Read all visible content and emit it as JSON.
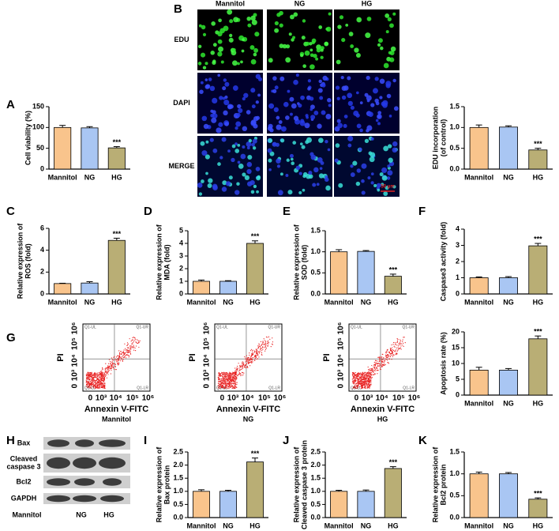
{
  "panel_labels": [
    "A",
    "B",
    "C",
    "D",
    "E",
    "F",
    "G",
    "H",
    "I",
    "J",
    "K"
  ],
  "microscopy": {
    "columns": [
      "Mannitol",
      "NG",
      "HG"
    ],
    "rows": [
      "EDU",
      "DAPI",
      "MERGE"
    ],
    "scale_bar": "50 μm"
  },
  "flow": {
    "samples": [
      "Mannitol",
      "NG",
      "HG"
    ],
    "quadrants": [
      "Q1-UL",
      "Q1-UR",
      "Q1-LL",
      "Q1-LR"
    ],
    "xlabel": "Annexin V-FITC",
    "ylabel": "PI",
    "ticks": [
      "0",
      "10³",
      "10⁴",
      "10⁵",
      "10⁶"
    ]
  },
  "blot": {
    "rows": [
      [
        "Bax"
      ],
      [
        "Cleaved",
        "caspase 3"
      ],
      [
        "Bcl2"
      ],
      [
        "GAPDH"
      ]
    ],
    "columns": [
      "Mannitol",
      "NG",
      "HG"
    ]
  },
  "chart_data": [
    {
      "type": "bar",
      "ylabel": [
        "Cell viability (%)"
      ],
      "categories": [
        "Mannitol",
        "NG",
        "HG"
      ],
      "colors": [
        "#f9c48c",
        "#a9c6f3",
        "#b9ae75"
      ],
      "values": [
        100,
        99,
        51
      ],
      "errors": [
        5,
        3,
        3
      ],
      "annotation": "***",
      "ylim": [
        0,
        150
      ],
      "yticks": [
        0,
        50,
        100,
        150
      ]
    },
    {
      "type": "bar",
      "ylabel": [
        "EDU incorporation",
        "(of control)"
      ],
      "categories": [
        "Mannitol",
        "NG",
        "HG"
      ],
      "colors": [
        "#f9c48c",
        "#a9c6f3",
        "#b9ae75"
      ],
      "values": [
        1.0,
        1.01,
        0.46
      ],
      "errors": [
        0.06,
        0.03,
        0.04
      ],
      "annotation": "***",
      "ylim": [
        0,
        1.5
      ],
      "yticks": [
        {
          "value": 0,
          "label": "0.0"
        },
        {
          "value": 0.5,
          "label": "0.5"
        },
        {
          "value": 1,
          "label": "1.0"
        },
        {
          "value": 1.5,
          "label": "1.5"
        }
      ]
    },
    {
      "type": "bar",
      "ylabel": [
        "Relative expression of",
        "ROS (fold)"
      ],
      "categories": [
        "Mannitol",
        "NG",
        "HG"
      ],
      "colors": [
        "#f9c48c",
        "#a9c6f3",
        "#b9ae75"
      ],
      "values": [
        0.95,
        1.0,
        4.9
      ],
      "errors": [
        0.03,
        0.12,
        0.2
      ],
      "annotation": "***",
      "ylim": [
        0,
        6
      ],
      "yticks": [
        0,
        2,
        4,
        6
      ]
    },
    {
      "type": "bar",
      "ylabel": [
        "Relative expression of",
        "MDA (fold)"
      ],
      "categories": [
        "Mannitol",
        "NG",
        "HG"
      ],
      "colors": [
        "#f9c48c",
        "#a9c6f3",
        "#b9ae75"
      ],
      "values": [
        1.0,
        1.0,
        4.0
      ],
      "errors": [
        0.1,
        0.05,
        0.2
      ],
      "annotation": "***",
      "ylim": [
        0,
        5
      ],
      "yticks": [
        0,
        1,
        2,
        3,
        4,
        5
      ]
    },
    {
      "type": "bar",
      "ylabel": [
        "Relative expression of",
        "SOD (fold)"
      ],
      "categories": [
        "Mannitol",
        "NG",
        "HG"
      ],
      "colors": [
        "#f9c48c",
        "#a9c6f3",
        "#b9ae75"
      ],
      "values": [
        1.0,
        1.01,
        0.42
      ],
      "errors": [
        0.05,
        0.02,
        0.05
      ],
      "annotation": "***",
      "ylim": [
        0,
        1.5
      ],
      "yticks": [
        {
          "value": 0,
          "label": "0.0"
        },
        {
          "value": 0.5,
          "label": "0.5"
        },
        {
          "value": 1,
          "label": "1.0"
        },
        {
          "value": 1.5,
          "label": "1.5"
        }
      ]
    },
    {
      "type": "bar",
      "ylabel": [
        "Caspase3 activity (fold)"
      ],
      "categories": [
        "Mannitol",
        "NG",
        "HG"
      ],
      "colors": [
        "#f9c48c",
        "#a9c6f3",
        "#b9ae75"
      ],
      "values": [
        1.0,
        1.0,
        2.97
      ],
      "errors": [
        0.05,
        0.07,
        0.15
      ],
      "annotation": "***",
      "ylim": [
        0,
        4
      ],
      "yticks": [
        0,
        1,
        2,
        3,
        4
      ]
    },
    {
      "type": "bar",
      "ylabel": [
        "Apoptosis rate (%)"
      ],
      "categories": [
        "Mannitol",
        "NG",
        "HG"
      ],
      "colors": [
        "#f9c48c",
        "#a9c6f3",
        "#b9ae75"
      ],
      "values": [
        7.9,
        7.9,
        17.8
      ],
      "errors": [
        0.9,
        0.5,
        0.9
      ],
      "annotation": "***",
      "ylim": [
        0,
        20
      ],
      "yticks": [
        0,
        5,
        10,
        15,
        20
      ]
    },
    {
      "type": "bar",
      "ylabel": [
        "Relative expression of",
        "Bax protein"
      ],
      "categories": [
        "Mannitol",
        "NG",
        "HG"
      ],
      "colors": [
        "#f9c48c",
        "#a9c6f3",
        "#b9ae75"
      ],
      "values": [
        1.0,
        1.0,
        2.12
      ],
      "errors": [
        0.06,
        0.04,
        0.15
      ],
      "annotation": "***",
      "ylim": [
        0,
        2.5
      ],
      "yticks": [
        {
          "value": 0,
          "label": "0.0"
        },
        {
          "value": 0.5,
          "label": "0.5"
        },
        {
          "value": 1,
          "label": "1.0"
        },
        {
          "value": 1.5,
          "label": "1.5"
        },
        {
          "value": 2,
          "label": "2.0"
        },
        {
          "value": 2.5,
          "label": "2.5"
        }
      ]
    },
    {
      "type": "bar",
      "ylabel": [
        "Relative expression of",
        "Cleaved caspase 3 protein"
      ],
      "categories": [
        "Mannitol",
        "NG",
        "HG"
      ],
      "colors": [
        "#f9c48c",
        "#a9c6f3",
        "#b9ae75"
      ],
      "values": [
        1.0,
        1.0,
        1.87
      ],
      "errors": [
        0.04,
        0.05,
        0.07
      ],
      "annotation": "***",
      "ylim": [
        0,
        2.5
      ],
      "yticks": [
        {
          "value": 0,
          "label": "0.0"
        },
        {
          "value": 0.5,
          "label": "0.5"
        },
        {
          "value": 1,
          "label": "1.0"
        },
        {
          "value": 1.5,
          "label": "1.5"
        },
        {
          "value": 2,
          "label": "2.0"
        },
        {
          "value": 2.5,
          "label": "2.5"
        }
      ]
    },
    {
      "type": "bar",
      "ylabel": [
        "Relative expression of",
        "Bcl2 protein"
      ],
      "categories": [
        "Mannitol",
        "NG",
        "HG"
      ],
      "colors": [
        "#f9c48c",
        "#a9c6f3",
        "#b9ae75"
      ],
      "values": [
        1.0,
        1.0,
        0.42
      ],
      "errors": [
        0.04,
        0.03,
        0.03
      ],
      "annotation": "***",
      "ylim": [
        0,
        1.5
      ],
      "yticks": [
        {
          "value": 0,
          "label": "0.0"
        },
        {
          "value": 0.5,
          "label": "0.5"
        },
        {
          "value": 1,
          "label": "1.0"
        },
        {
          "value": 1.5,
          "label": "1.5"
        }
      ]
    }
  ]
}
